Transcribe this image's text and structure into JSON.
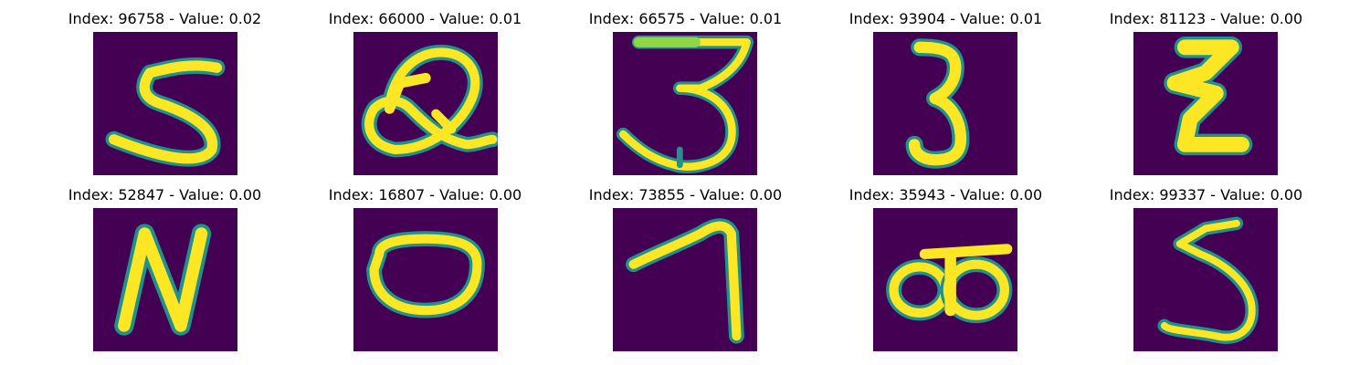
{
  "figure": {
    "panels": [
      {
        "index": "96758",
        "value": "0.02",
        "title": "Index: 96758 - Value: 0.02",
        "glyph": "digit-5"
      },
      {
        "index": "66000",
        "value": "0.01",
        "title": "Index: 66000 - Value: 0.01",
        "glyph": "digit-2-looped"
      },
      {
        "index": "66575",
        "value": "0.01",
        "title": "Index: 66575 - Value: 0.01",
        "glyph": "digit-3"
      },
      {
        "index": "93904",
        "value": "0.01",
        "title": "Index: 93904 - Value: 0.01",
        "glyph": "digit-3"
      },
      {
        "index": "81123",
        "value": "0.00",
        "title": "Index: 81123 - Value: 0.00",
        "glyph": "digit-z"
      },
      {
        "index": "52847",
        "value": "0.00",
        "title": "Index: 52847 - Value: 0.00",
        "glyph": "letter-n"
      },
      {
        "index": "16807",
        "value": "0.00",
        "title": "Index: 16807 - Value: 0.00",
        "glyph": "digit-0"
      },
      {
        "index": "73855",
        "value": "0.00",
        "title": "Index: 73855 - Value: 0.00",
        "glyph": "digit-7"
      },
      {
        "index": "35943",
        "value": "0.00",
        "title": "Index: 35943 - Value: 0.00",
        "glyph": "digit-8-horizontal"
      },
      {
        "index": "99337",
        "value": "0.00",
        "title": "Index: 99337 - Value: 0.00",
        "glyph": "digit-5"
      }
    ],
    "colors": {
      "background": "#440154",
      "stroke_core": "#fde725",
      "stroke_edge": "#21918c",
      "stroke_mid": "#5ec962"
    }
  }
}
